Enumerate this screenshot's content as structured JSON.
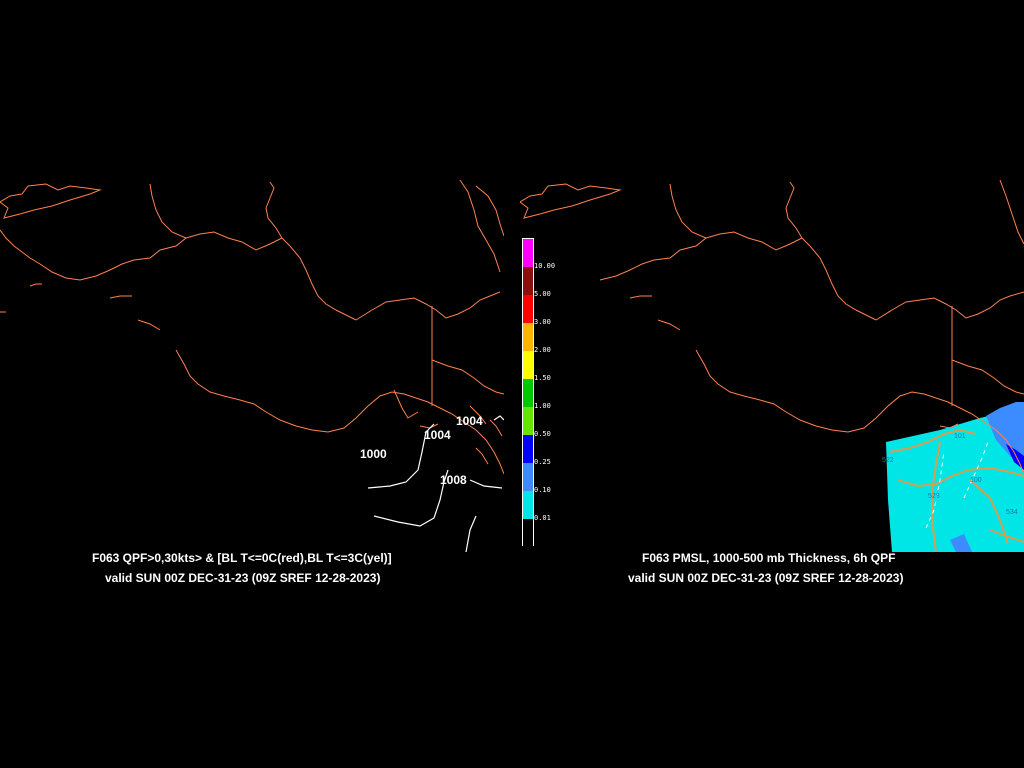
{
  "left_panel": {
    "title": "F063 QPF>0,30kts> & [BL T<=0C(red),BL T<=3C(yel)]",
    "valid": "valid SUN 00Z DEC-31-23 (09Z SREF 12-28-2023)",
    "isobar_labels": [
      "1000",
      "1004",
      "1004",
      "1008"
    ]
  },
  "right_panel": {
    "title": "F063 PMSL, 1000-500 mb Thickness, 6h QPF",
    "valid": "valid SUN 00Z DEC-31-23 (09Z SREF 12-28-2023)",
    "thickness_labels": [
      "522",
      "528",
      "534",
      "100",
      "101"
    ]
  },
  "colorbar": {
    "labels": [
      "10.00",
      "5.00",
      "3.00",
      "2.00",
      "1.50",
      "1.00",
      "0.50",
      "0.25",
      "0.10",
      "0.01"
    ],
    "colors": [
      "#ff00ff",
      "#8b0f0f",
      "#ff0000",
      "#ffb400",
      "#ffff00",
      "#00c800",
      "#64e600",
      "#0000ff",
      "#3c8cff",
      "#00e6e6",
      "#000000"
    ]
  },
  "colors": {
    "background": "#000000",
    "coastline": "#ff8050",
    "isobar": "#ffffff",
    "qpf_fill": "#00e6e6",
    "thickness": "#d2a050"
  }
}
